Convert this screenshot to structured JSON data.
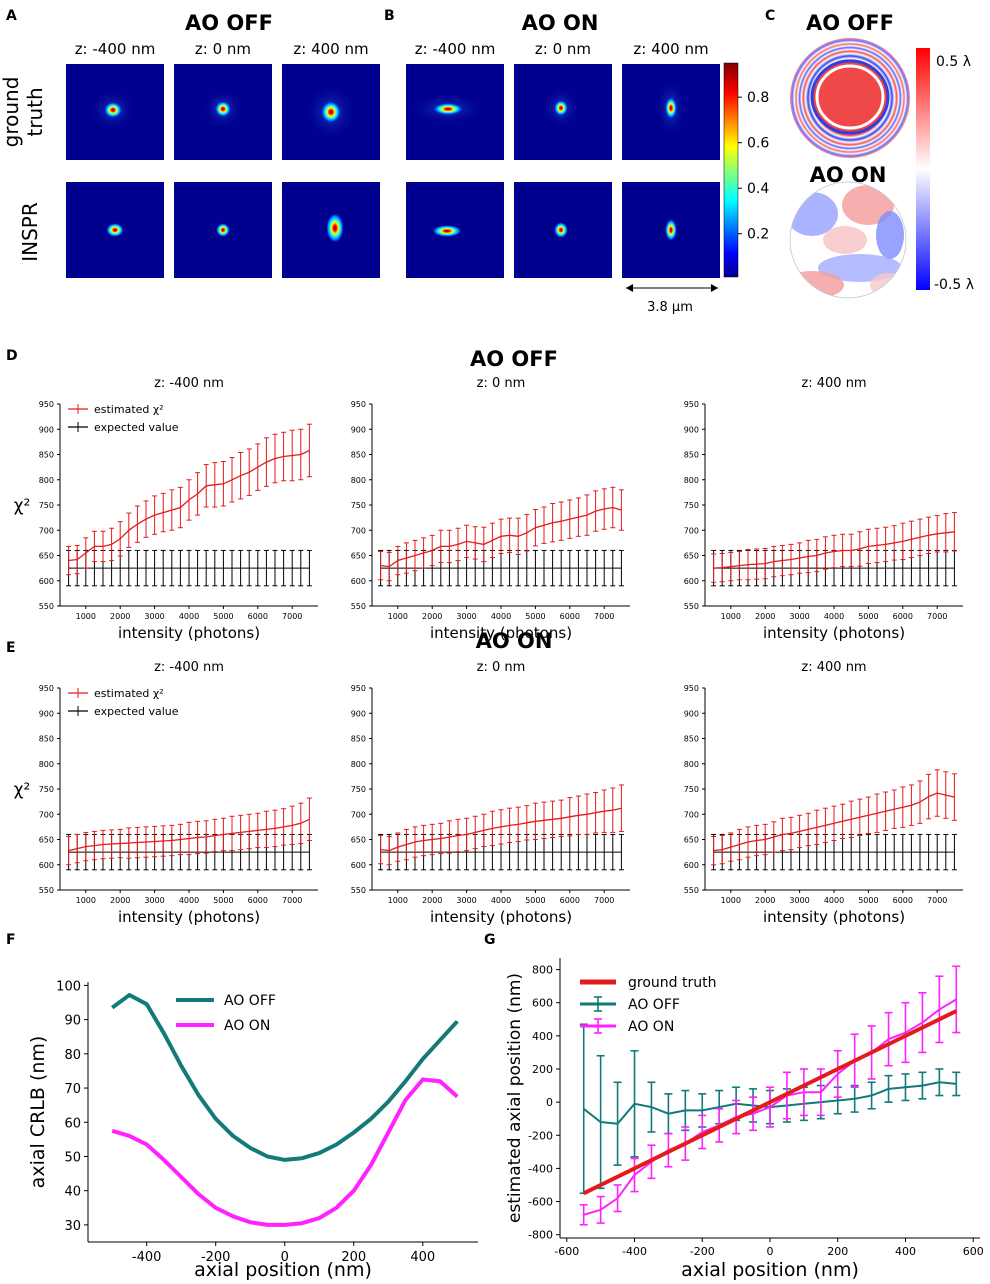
{
  "panel_letters": {
    "A": "A",
    "B": "B",
    "C": "C",
    "D": "D",
    "E": "E",
    "F": "F",
    "G": "G"
  },
  "colors": {
    "teal": "#127a78",
    "magenta": "#ff22ff",
    "red": "#e41a1c",
    "black": "#000000"
  },
  "psf": {
    "A_title": "AO OFF",
    "B_title": "AO ON",
    "z_labels": [
      "z: -400 nm",
      "z: 0 nm",
      "z: 400 nm"
    ],
    "row_labels": [
      "ground\ntruth",
      "INSPR"
    ],
    "row_label_lines": [
      [
        "ground",
        "truth"
      ],
      [
        "INSPR"
      ]
    ],
    "colorbar_ticks": [
      "0.8",
      "0.6",
      "0.4",
      "0.2"
    ],
    "colorbar_tick_values": [
      0.8,
      0.6,
      0.4,
      0.2
    ],
    "scale_bar": "3.8 µm"
  },
  "aberration": {
    "off_title": "AO OFF",
    "on_title": "AO ON",
    "max_label": "0.5 λ",
    "min_label": "-0.5 λ"
  },
  "chart_data": [
    {
      "id": "D",
      "type": "line",
      "title": "AO OFF",
      "ylabel": "χ²",
      "xlabel": "intensity (photons)",
      "subtitles": [
        "z: -400 nm",
        "z: 0 nm",
        "z: 400 nm"
      ],
      "legend": [
        "estimated χ²",
        "expected value"
      ],
      "legend_position": "top-left",
      "yticks": [
        "950",
        "900",
        "850",
        "800",
        "750",
        "700",
        "650",
        "600",
        "550"
      ],
      "xticks": [
        "1000",
        "2000",
        "3000",
        "4000",
        "5000",
        "6000",
        "7000"
      ],
      "ylim": [
        550,
        950
      ],
      "xlim": [
        250,
        7750
      ],
      "x": [
        500,
        750,
        1000,
        1250,
        1500,
        1750,
        2000,
        2250,
        2500,
        2750,
        3000,
        3250,
        3500,
        3750,
        4000,
        4250,
        4500,
        4750,
        5000,
        5250,
        5500,
        5750,
        6000,
        6250,
        6500,
        6750,
        7000,
        7250,
        7500
      ],
      "expected": {
        "value": 625,
        "err": 35
      },
      "series": [
        {
          "name": "z: -400 nm",
          "values": [
            640,
            642,
            655,
            668,
            668,
            672,
            683,
            700,
            712,
            722,
            730,
            735,
            740,
            745,
            760,
            772,
            788,
            790,
            792,
            800,
            808,
            815,
            825,
            835,
            842,
            846,
            848,
            850,
            858
          ],
          "err": [
            28,
            28,
            30,
            30,
            30,
            32,
            34,
            34,
            36,
            36,
            38,
            38,
            40,
            40,
            40,
            42,
            42,
            44,
            44,
            44,
            46,
            46,
            46,
            48,
            48,
            48,
            50,
            50,
            52
          ]
        },
        {
          "name": "z: 0 nm",
          "values": [
            630,
            628,
            640,
            645,
            650,
            655,
            660,
            668,
            668,
            672,
            678,
            675,
            672,
            680,
            688,
            690,
            688,
            695,
            705,
            710,
            715,
            718,
            722,
            726,
            730,
            738,
            742,
            745,
            740
          ],
          "err": [
            28,
            28,
            28,
            30,
            30,
            30,
            30,
            32,
            32,
            32,
            32,
            32,
            34,
            34,
            34,
            34,
            36,
            36,
            36,
            36,
            38,
            38,
            38,
            38,
            40,
            40,
            40,
            40,
            40
          ]
        },
        {
          "name": "z: 400 nm",
          "values": [
            625,
            626,
            628,
            630,
            632,
            633,
            634,
            638,
            640,
            642,
            645,
            648,
            650,
            655,
            658,
            660,
            660,
            663,
            668,
            670,
            672,
            675,
            678,
            682,
            686,
            690,
            693,
            695,
            697
          ],
          "err": [
            28,
            28,
            28,
            28,
            30,
            30,
            30,
            30,
            30,
            30,
            30,
            32,
            32,
            32,
            32,
            32,
            32,
            34,
            34,
            34,
            34,
            34,
            36,
            36,
            36,
            36,
            36,
            38,
            38
          ]
        }
      ]
    },
    {
      "id": "E",
      "type": "line",
      "title": "AO ON",
      "ylabel": "χ²",
      "xlabel": "intensity (photons)",
      "subtitles": [
        "z: -400 nm",
        "z: 0 nm",
        "z: 400 nm"
      ],
      "legend": [
        "estimated χ²",
        "expected value"
      ],
      "legend_position": "top-left",
      "yticks": [
        "950",
        "900",
        "850",
        "800",
        "750",
        "700",
        "650",
        "600",
        "550"
      ],
      "xticks": [
        "1000",
        "2000",
        "3000",
        "4000",
        "5000",
        "6000",
        "7000"
      ],
      "ylim": [
        550,
        950
      ],
      "xlim": [
        250,
        7750
      ],
      "x": [
        500,
        750,
        1000,
        1250,
        1500,
        1750,
        2000,
        2250,
        2500,
        2750,
        3000,
        3250,
        3500,
        3750,
        4000,
        4250,
        4500,
        4750,
        5000,
        5250,
        5500,
        5750,
        6000,
        6250,
        6500,
        6750,
        7000,
        7250,
        7500
      ],
      "expected": {
        "value": 625,
        "err": 35
      },
      "series": [
        {
          "name": "z: -400 nm",
          "values": [
            628,
            632,
            636,
            638,
            640,
            641,
            642,
            643,
            644,
            645,
            646,
            647,
            648,
            650,
            652,
            654,
            655,
            658,
            660,
            662,
            664,
            666,
            668,
            670,
            672,
            675,
            678,
            682,
            690
          ],
          "err": [
            28,
            28,
            28,
            28,
            28,
            28,
            28,
            30,
            30,
            30,
            30,
            30,
            30,
            30,
            32,
            32,
            32,
            32,
            32,
            34,
            34,
            34,
            34,
            36,
            36,
            36,
            38,
            40,
            42
          ]
        },
        {
          "name": "z: 0 nm",
          "values": [
            630,
            628,
            635,
            640,
            645,
            648,
            650,
            652,
            655,
            658,
            660,
            664,
            668,
            672,
            675,
            678,
            680,
            683,
            686,
            688,
            690,
            692,
            695,
            698,
            700,
            703,
            706,
            708,
            712
          ],
          "err": [
            28,
            28,
            28,
            30,
            30,
            30,
            30,
            30,
            32,
            32,
            32,
            32,
            32,
            34,
            34,
            34,
            34,
            34,
            36,
            36,
            36,
            36,
            38,
            38,
            40,
            40,
            42,
            44,
            46
          ]
        },
        {
          "name": "z: 400 nm",
          "values": [
            628,
            630,
            635,
            640,
            645,
            648,
            650,
            655,
            660,
            662,
            666,
            670,
            674,
            678,
            682,
            686,
            690,
            694,
            698,
            702,
            706,
            710,
            714,
            718,
            724,
            735,
            742,
            738,
            734
          ],
          "err": [
            28,
            28,
            28,
            30,
            30,
            30,
            30,
            30,
            32,
            32,
            32,
            32,
            34,
            34,
            34,
            34,
            36,
            36,
            36,
            38,
            38,
            38,
            40,
            40,
            42,
            44,
            46,
            46,
            46
          ]
        }
      ]
    },
    {
      "id": "F",
      "type": "line",
      "xlabel": "axial position (nm)",
      "ylabel": "axial CRLB (nm)",
      "xticks": [
        "-400",
        "-200",
        "0",
        "200",
        "400"
      ],
      "xtick_values": [
        -400,
        -200,
        0,
        200,
        400
      ],
      "yticks": [
        "100",
        "90",
        "80",
        "70",
        "60",
        "50",
        "40",
        "30"
      ],
      "ytick_values": [
        100,
        90,
        80,
        70,
        60,
        50,
        40,
        30
      ],
      "xlim": [
        -570,
        560
      ],
      "ylim": [
        25,
        101
      ],
      "legend_position": "top-center",
      "x": [
        -500,
        -450,
        -400,
        -350,
        -300,
        -250,
        -200,
        -150,
        -100,
        -50,
        0,
        50,
        100,
        150,
        200,
        250,
        300,
        350,
        400,
        450,
        500
      ],
      "series": [
        {
          "name": "AO OFF",
          "values": [
            93.5,
            97.2,
            94.5,
            86,
            76.5,
            68,
            61,
            56,
            52.5,
            50,
            49,
            49.5,
            51,
            53.5,
            57,
            61,
            66,
            72,
            78.5,
            84,
            89.5
          ]
        },
        {
          "name": "AO ON",
          "values": [
            57.5,
            56,
            53.5,
            49,
            44,
            39,
            35,
            32.5,
            30.8,
            30,
            30,
            30.5,
            32,
            35,
            40,
            47.5,
            57,
            66.5,
            72.5,
            72,
            67.5
          ]
        }
      ]
    },
    {
      "id": "G",
      "type": "line",
      "xlabel": "axial position (nm)",
      "ylabel": "estimated axial position (nm)",
      "xticks": [
        "-600",
        "-400",
        "-200",
        "0",
        "200",
        "400",
        "600"
      ],
      "xtick_values": [
        -600,
        -400,
        -200,
        0,
        200,
        400,
        600
      ],
      "yticks": [
        "800",
        "600",
        "400",
        "200",
        "0",
        "-200",
        "-400",
        "-600",
        "-800"
      ],
      "ytick_values": [
        800,
        600,
        400,
        200,
        0,
        -200,
        -400,
        -600,
        -800
      ],
      "xlim": [
        -620,
        620
      ],
      "ylim": [
        -820,
        870
      ],
      "legend_position": "top-left",
      "series": [
        {
          "name": "ground truth",
          "x": [
            -550,
            550
          ],
          "values": [
            -550,
            550
          ]
        },
        {
          "name": "AO OFF",
          "x": [
            -550,
            -500,
            -450,
            -400,
            -350,
            -300,
            -250,
            -200,
            -150,
            -100,
            -50,
            0,
            50,
            100,
            150,
            200,
            250,
            300,
            350,
            400,
            450,
            500,
            550
          ],
          "values": [
            -40,
            -120,
            -130,
            -10,
            -30,
            -70,
            -50,
            -50,
            -30,
            -10,
            -20,
            -30,
            -20,
            -10,
            0,
            10,
            20,
            40,
            80,
            90,
            100,
            120,
            110
          ],
          "err": [
            510,
            400,
            250,
            320,
            150,
            120,
            120,
            100,
            100,
            100,
            100,
            100,
            100,
            100,
            100,
            80,
            80,
            80,
            80,
            80,
            80,
            80,
            70
          ]
        },
        {
          "name": "AO ON",
          "x": [
            -550,
            -500,
            -450,
            -400,
            -350,
            -300,
            -250,
            -200,
            -150,
            -100,
            -50,
            0,
            50,
            100,
            150,
            200,
            250,
            300,
            350,
            400,
            450,
            500,
            550
          ],
          "values": [
            -680,
            -650,
            -580,
            -440,
            -360,
            -290,
            -250,
            -180,
            -140,
            -90,
            -70,
            -30,
            40,
            60,
            60,
            170,
            250,
            300,
            380,
            420,
            480,
            560,
            620
          ],
          "err": [
            60,
            80,
            80,
            100,
            100,
            100,
            100,
            100,
            100,
            100,
            100,
            120,
            140,
            140,
            140,
            140,
            160,
            160,
            160,
            180,
            180,
            200,
            200
          ]
        }
      ]
    }
  ]
}
